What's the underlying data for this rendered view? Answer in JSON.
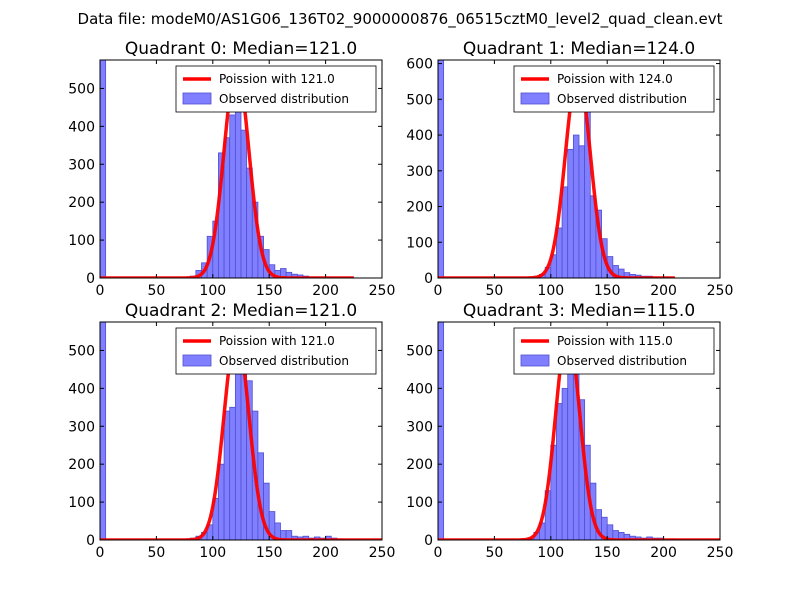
{
  "figure": {
    "suptitle": "Data file: modeM0/AS1G06_136T02_9000000876_06515cztM0_level2_quad_clean.evt"
  },
  "colors": {
    "hist_fill": "#7f7fff",
    "hist_edge": "#4f4fd0",
    "poisson": "#ff0000"
  },
  "chart_data": [
    {
      "type": "bar",
      "title": "Quadrant 0: Median=121.0",
      "xlim": [
        0,
        250
      ],
      "ylim": [
        0,
        575
      ],
      "xticks": [
        0,
        50,
        100,
        150,
        200,
        250
      ],
      "yticks": [
        0,
        100,
        200,
        300,
        400,
        500
      ],
      "bin_width": 5,
      "bins": [
        {
          "x": 0,
          "count": 575
        },
        {
          "x": 80,
          "count": 5
        },
        {
          "x": 85,
          "count": 20
        },
        {
          "x": 90,
          "count": 40
        },
        {
          "x": 95,
          "count": 110
        },
        {
          "x": 100,
          "count": 150
        },
        {
          "x": 105,
          "count": 330
        },
        {
          "x": 110,
          "count": 370
        },
        {
          "x": 115,
          "count": 430
        },
        {
          "x": 120,
          "count": 480
        },
        {
          "x": 125,
          "count": 390
        },
        {
          "x": 130,
          "count": 290
        },
        {
          "x": 135,
          "count": 200
        },
        {
          "x": 140,
          "count": 110
        },
        {
          "x": 145,
          "count": 75
        },
        {
          "x": 150,
          "count": 35
        },
        {
          "x": 155,
          "count": 20
        },
        {
          "x": 160,
          "count": 25
        },
        {
          "x": 165,
          "count": 15
        },
        {
          "x": 170,
          "count": 10
        },
        {
          "x": 175,
          "count": 8
        },
        {
          "x": 180,
          "count": 5
        },
        {
          "x": 185,
          "count": 3
        },
        {
          "x": 190,
          "count": 3
        },
        {
          "x": 200,
          "count": 2
        },
        {
          "x": 220,
          "count": 1
        }
      ],
      "poisson_mean": 121.0,
      "poisson_peak": 555,
      "poisson_sigma": 11,
      "poisson_range": [
        0,
        225
      ],
      "legend": [
        "Poission with 121.0",
        "Observed distribution"
      ]
    },
    {
      "type": "bar",
      "title": "Quadrant 1: Median=124.0",
      "xlim": [
        0,
        250
      ],
      "ylim": [
        0,
        610
      ],
      "xticks": [
        0,
        50,
        100,
        150,
        200,
        250
      ],
      "yticks": [
        0,
        100,
        200,
        300,
        400,
        500,
        600
      ],
      "bin_width": 5,
      "bins": [
        {
          "x": 0,
          "count": 610
        },
        {
          "x": 85,
          "count": 5
        },
        {
          "x": 90,
          "count": 10
        },
        {
          "x": 95,
          "count": 30
        },
        {
          "x": 100,
          "count": 65
        },
        {
          "x": 105,
          "count": 140
        },
        {
          "x": 110,
          "count": 255
        },
        {
          "x": 115,
          "count": 360
        },
        {
          "x": 120,
          "count": 400
        },
        {
          "x": 125,
          "count": 370
        },
        {
          "x": 130,
          "count": 500
        },
        {
          "x": 135,
          "count": 230
        },
        {
          "x": 140,
          "count": 190
        },
        {
          "x": 145,
          "count": 110
        },
        {
          "x": 150,
          "count": 60
        },
        {
          "x": 155,
          "count": 35
        },
        {
          "x": 160,
          "count": 25
        },
        {
          "x": 165,
          "count": 15
        },
        {
          "x": 170,
          "count": 10
        },
        {
          "x": 175,
          "count": 8
        },
        {
          "x": 180,
          "count": 5
        },
        {
          "x": 185,
          "count": 5
        },
        {
          "x": 190,
          "count": 3
        },
        {
          "x": 200,
          "count": 2
        }
      ],
      "poisson_mean": 124.0,
      "poisson_peak": 575,
      "poisson_sigma": 11,
      "poisson_range": [
        0,
        210
      ],
      "legend": [
        "Poission with 124.0",
        "Observed distribution"
      ]
    },
    {
      "type": "bar",
      "title": "Quadrant 2: Median=121.0",
      "xlim": [
        0,
        250
      ],
      "ylim": [
        0,
        575
      ],
      "xticks": [
        0,
        50,
        100,
        150,
        200,
        250
      ],
      "yticks": [
        0,
        100,
        200,
        300,
        400,
        500
      ],
      "bin_width": 5,
      "bins": [
        {
          "x": 0,
          "count": 575
        },
        {
          "x": 80,
          "count": 5
        },
        {
          "x": 85,
          "count": 10
        },
        {
          "x": 90,
          "count": 20
        },
        {
          "x": 95,
          "count": 40
        },
        {
          "x": 100,
          "count": 110
        },
        {
          "x": 105,
          "count": 200
        },
        {
          "x": 110,
          "count": 340
        },
        {
          "x": 115,
          "count": 350
        },
        {
          "x": 120,
          "count": 480
        },
        {
          "x": 125,
          "count": 500
        },
        {
          "x": 130,
          "count": 420
        },
        {
          "x": 135,
          "count": 340
        },
        {
          "x": 140,
          "count": 230
        },
        {
          "x": 145,
          "count": 150
        },
        {
          "x": 150,
          "count": 75
        },
        {
          "x": 155,
          "count": 45
        },
        {
          "x": 160,
          "count": 25
        },
        {
          "x": 165,
          "count": 25
        },
        {
          "x": 170,
          "count": 10
        },
        {
          "x": 175,
          "count": 8
        },
        {
          "x": 180,
          "count": 10
        },
        {
          "x": 185,
          "count": 5
        },
        {
          "x": 190,
          "count": 8
        },
        {
          "x": 195,
          "count": 5
        },
        {
          "x": 200,
          "count": 10
        },
        {
          "x": 205,
          "count": 5
        },
        {
          "x": 210,
          "count": 3
        }
      ],
      "poisson_mean": 121.0,
      "poisson_peak": 545,
      "poisson_sigma": 11,
      "poisson_range": [
        0,
        250
      ],
      "legend": [
        "Poission with 121.0",
        "Observed distribution"
      ]
    },
    {
      "type": "bar",
      "title": "Quadrant 3: Median=115.0",
      "xlim": [
        0,
        250
      ],
      "ylim": [
        0,
        575
      ],
      "xticks": [
        0,
        50,
        100,
        150,
        200,
        250
      ],
      "yticks": [
        0,
        100,
        200,
        300,
        400,
        500
      ],
      "bin_width": 5,
      "bins": [
        {
          "x": 0,
          "count": 575
        },
        {
          "x": 80,
          "count": 5
        },
        {
          "x": 85,
          "count": 20
        },
        {
          "x": 90,
          "count": 45
        },
        {
          "x": 95,
          "count": 130
        },
        {
          "x": 100,
          "count": 250
        },
        {
          "x": 105,
          "count": 360
        },
        {
          "x": 110,
          "count": 400
        },
        {
          "x": 115,
          "count": 520
        },
        {
          "x": 120,
          "count": 440
        },
        {
          "x": 125,
          "count": 370
        },
        {
          "x": 130,
          "count": 250
        },
        {
          "x": 135,
          "count": 150
        },
        {
          "x": 140,
          "count": 80
        },
        {
          "x": 145,
          "count": 60
        },
        {
          "x": 150,
          "count": 40
        },
        {
          "x": 155,
          "count": 25
        },
        {
          "x": 160,
          "count": 20
        },
        {
          "x": 165,
          "count": 15
        },
        {
          "x": 170,
          "count": 10
        },
        {
          "x": 175,
          "count": 8
        },
        {
          "x": 180,
          "count": 5
        },
        {
          "x": 185,
          "count": 8
        },
        {
          "x": 190,
          "count": 5
        },
        {
          "x": 195,
          "count": 5
        },
        {
          "x": 205,
          "count": 3
        },
        {
          "x": 210,
          "count": 2
        }
      ],
      "poisson_mean": 115.0,
      "poisson_peak": 548,
      "poisson_sigma": 10.7,
      "poisson_range": [
        0,
        250
      ],
      "legend": [
        "Poission with 115.0",
        "Observed distribution"
      ]
    }
  ]
}
